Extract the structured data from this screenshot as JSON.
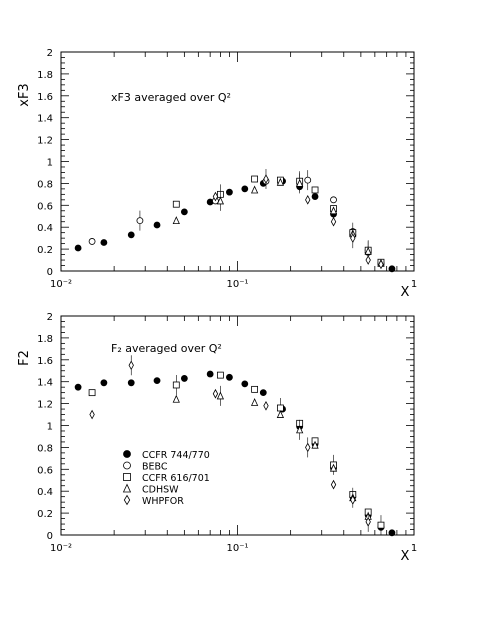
{
  "chart_data": [
    {
      "type": "scatter",
      "xscale": "log",
      "xlim": [
        0.01,
        1
      ],
      "ylim": [
        0,
        2
      ],
      "ylabel": "xF3",
      "xlabel": "X",
      "annotation": "xF3 averaged over Q²",
      "x_tick_labels": [
        "10⁻²",
        "10⁻¹",
        "1"
      ],
      "y_tick_labels": [
        "0",
        "0.2",
        "0.4",
        "0.6",
        "0.8",
        "1",
        "1.2",
        "1.4",
        "1.6",
        "1.8",
        "2"
      ],
      "series": [
        {
          "marker": "filled-circle",
          "x": [
            0.0125,
            0.0175,
            0.025,
            0.035,
            0.05,
            0.07,
            0.09,
            0.11,
            0.14,
            0.18,
            0.225,
            0.275,
            0.35,
            0.45,
            0.55,
            0.65,
            0.75
          ],
          "y": [
            0.21,
            0.26,
            0.33,
            0.42,
            0.54,
            0.63,
            0.72,
            0.75,
            0.8,
            0.82,
            0.77,
            0.68,
            0.52,
            0.33,
            0.17,
            0.07,
            0.02
          ]
        },
        {
          "marker": "open-circle",
          "x": [
            0.015,
            0.028,
            0.075,
            0.145,
            0.25,
            0.35,
            0.45,
            0.55
          ],
          "y": [
            0.27,
            0.46,
            0.64,
            0.82,
            0.83,
            0.65,
            0.36,
            0.19
          ]
        },
        {
          "marker": "open-square",
          "x": [
            0.045,
            0.08,
            0.125,
            0.175,
            0.225,
            0.275,
            0.35,
            0.45,
            0.55,
            0.65
          ],
          "y": [
            0.61,
            0.7,
            0.84,
            0.83,
            0.82,
            0.74,
            0.57,
            0.35,
            0.19,
            0.08
          ]
        },
        {
          "marker": "open-triangle",
          "x": [
            0.045,
            0.08,
            0.125,
            0.175,
            0.225,
            0.35,
            0.45,
            0.55,
            0.65
          ],
          "y": [
            0.46,
            0.64,
            0.74,
            0.81,
            0.8,
            0.55,
            0.34,
            0.18,
            0.07
          ]
        },
        {
          "marker": "open-diamond",
          "x": [
            0.075,
            0.145,
            0.25,
            0.35,
            0.45,
            0.55,
            0.65
          ],
          "y": [
            0.68,
            0.84,
            0.65,
            0.45,
            0.3,
            0.1,
            0.06
          ]
        }
      ]
    },
    {
      "type": "scatter",
      "xscale": "log",
      "xlim": [
        0.01,
        1
      ],
      "ylim": [
        0,
        2
      ],
      "ylabel": "F2",
      "xlabel": "X",
      "annotation": "F₂ averaged over Q²",
      "x_tick_labels": [
        "10⁻²",
        "10⁻¹",
        "1"
      ],
      "y_tick_labels": [
        "0",
        "0.2",
        "0.4",
        "0.6",
        "0.8",
        "1",
        "1.2",
        "1.4",
        "1.6",
        "1.8",
        "2"
      ],
      "legend": [
        "CCFR 744/770",
        "BEBC",
        "CCFR 616/701",
        "CDHSW",
        "WHPFOR"
      ],
      "series": [
        {
          "name": "CCFR 744/770",
          "marker": "filled-circle",
          "x": [
            0.0125,
            0.0175,
            0.025,
            0.035,
            0.05,
            0.07,
            0.09,
            0.11,
            0.14,
            0.18,
            0.225,
            0.275,
            0.35,
            0.45,
            0.55,
            0.65,
            0.75
          ],
          "y": [
            1.35,
            1.39,
            1.39,
            1.41,
            1.43,
            1.47,
            1.44,
            1.38,
            1.3,
            1.15,
            0.99,
            0.83,
            0.61,
            0.35,
            0.18,
            0.07,
            0.02
          ]
        },
        {
          "name": "BEBC",
          "marker": "open-circle",
          "x": [],
          "y": []
        },
        {
          "name": "CCFR 616/701",
          "marker": "open-square",
          "x": [
            0.015,
            0.045,
            0.08,
            0.125,
            0.175,
            0.225,
            0.275,
            0.35,
            0.45,
            0.55,
            0.65
          ],
          "y": [
            1.3,
            1.37,
            1.46,
            1.33,
            1.16,
            1.02,
            0.86,
            0.64,
            0.37,
            0.21,
            0.09
          ]
        },
        {
          "name": "CDHSW",
          "marker": "open-triangle",
          "x": [
            0.045,
            0.08,
            0.125,
            0.175,
            0.225,
            0.275,
            0.35,
            0.45,
            0.55
          ],
          "y": [
            1.24,
            1.27,
            1.21,
            1.1,
            0.96,
            0.82,
            0.61,
            0.34,
            0.17
          ]
        },
        {
          "name": "WHPFOR",
          "marker": "open-diamond",
          "x": [
            0.015,
            0.025,
            0.075,
            0.145,
            0.25,
            0.35,
            0.45,
            0.55
          ],
          "y": [
            1.1,
            1.55,
            1.29,
            1.18,
            0.8,
            0.46,
            0.32,
            0.12
          ]
        }
      ]
    }
  ]
}
